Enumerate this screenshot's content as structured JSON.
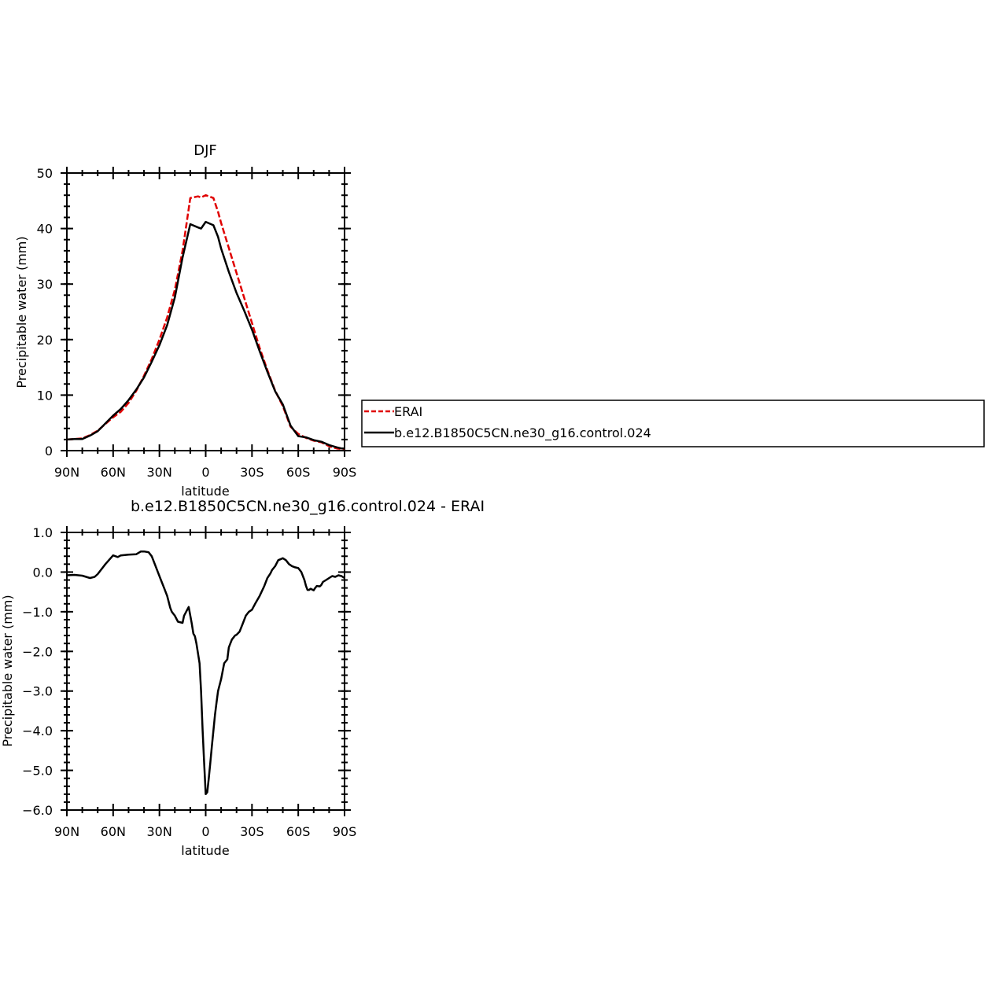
{
  "chart_data": [
    {
      "type": "line",
      "title": "DJF",
      "xlabel": "latitude",
      "ylabel": "Precipitable water (mm)",
      "xlim": [
        90,
        -90
      ],
      "ylim": [
        0,
        50
      ],
      "x_ticks": [
        90,
        60,
        30,
        0,
        -30,
        -60,
        -90
      ],
      "x_tick_labels": [
        "90N",
        "60N",
        "30N",
        "0",
        "30S",
        "60S",
        "90S"
      ],
      "y_ticks": [
        0,
        10,
        20,
        30,
        40,
        50
      ],
      "y_tick_labels": [
        "0",
        "10",
        "20",
        "30",
        "40",
        "50"
      ],
      "grid": false,
      "legend": "right",
      "series": [
        {
          "name": "ERAI",
          "color": "#e00000",
          "style": "dashed",
          "x": [
            90,
            85,
            80,
            75,
            70,
            65,
            60,
            55,
            50,
            45,
            40,
            35,
            30,
            25,
            20,
            15,
            10,
            5,
            3,
            0,
            -5,
            -8,
            -10,
            -15,
            -20,
            -25,
            -30,
            -35,
            -40,
            -45,
            -50,
            -55,
            -60,
            -65,
            -68,
            -70,
            -75,
            -80,
            -85,
            -88,
            -90
          ],
          "values": [
            2.0,
            2.1,
            2.2,
            2.8,
            3.6,
            4.8,
            6.0,
            7.0,
            8.6,
            10.8,
            13.5,
            16.5,
            20.0,
            24.0,
            29.0,
            36.0,
            45.5,
            45.8,
            45.6,
            46.0,
            45.5,
            43.0,
            41.0,
            36.5,
            32.0,
            27.5,
            23.0,
            18.5,
            14.5,
            10.8,
            8.0,
            4.3,
            3.0,
            2.3,
            2.0,
            1.8,
            1.5,
            0.8,
            0.4,
            0.3,
            0.3
          ]
        },
        {
          "name": "b.e12.B1850C5CN.ne30_g16.control.024",
          "color": "#000000",
          "style": "solid",
          "x": [
            90,
            85,
            80,
            75,
            70,
            65,
            60,
            55,
            50,
            45,
            40,
            35,
            30,
            25,
            20,
            15,
            10,
            5,
            3,
            0,
            -5,
            -8,
            -10,
            -15,
            -20,
            -25,
            -30,
            -35,
            -40,
            -45,
            -50,
            -55,
            -60,
            -65,
            -68,
            -70,
            -75,
            -80,
            -85,
            -88,
            -90
          ],
          "values": [
            2.0,
            2.1,
            2.1,
            2.7,
            3.5,
            4.9,
            6.3,
            7.5,
            9.1,
            11.0,
            13.2,
            16.0,
            19.0,
            22.6,
            27.6,
            34.8,
            40.8,
            40.2,
            40.0,
            41.2,
            40.6,
            38.5,
            36.4,
            32.2,
            28.4,
            25.2,
            21.8,
            17.9,
            14.2,
            10.7,
            8.3,
            4.5,
            2.6,
            2.4,
            2.1,
            1.9,
            1.6,
            1.0,
            0.6,
            0.4,
            0.4
          ]
        }
      ]
    },
    {
      "type": "line",
      "title": "b.e12.B1850C5CN.ne30_g16.control.024 - ERAI",
      "xlabel": "latitude",
      "ylabel": "Precipitable water (mm)",
      "xlim": [
        90,
        -90
      ],
      "ylim": [
        -6,
        1
      ],
      "x_ticks": [
        90,
        60,
        30,
        0,
        -30,
        -60,
        -90
      ],
      "x_tick_labels": [
        "90N",
        "60N",
        "30N",
        "0",
        "30S",
        "60S",
        "90S"
      ],
      "y_ticks": [
        1,
        0,
        -1,
        -2,
        -3,
        -4,
        -5,
        -6
      ],
      "y_tick_labels": [
        "1.0",
        "0.0",
        "−1.0",
        "−2.0",
        "−3.0",
        "−4.0",
        "−5.0",
        "−6.0"
      ],
      "grid": false,
      "series": [
        {
          "name": "",
          "color": "#000000",
          "style": "solid",
          "x": [
            90,
            85,
            80,
            75,
            72,
            70,
            65,
            60,
            57,
            55,
            50,
            45,
            42,
            40,
            37,
            35,
            33,
            31,
            29,
            27,
            26,
            25,
            23,
            22,
            21,
            20,
            18,
            15,
            14,
            12,
            11,
            9,
            8,
            7,
            6,
            4,
            3,
            2,
            1,
            0,
            -1,
            -2,
            -3,
            -4,
            -5,
            -6,
            -7,
            -8,
            -10,
            -12,
            -14,
            -15,
            -17,
            -19,
            -20,
            -22,
            -24,
            -26,
            -28,
            -30,
            -32,
            -35,
            -38,
            -40,
            -42,
            -43,
            -45,
            -47,
            -50,
            -52,
            -54,
            -56,
            -58,
            -60,
            -62,
            -64,
            -65,
            -66,
            -67,
            -68,
            -70,
            -71,
            -72,
            -74,
            -75,
            -76,
            -78,
            -80,
            -82,
            -84,
            -86,
            -88,
            -90
          ],
          "values": [
            -0.08,
            -0.07,
            -0.09,
            -0.15,
            -0.12,
            -0.05,
            0.2,
            0.42,
            0.38,
            0.42,
            0.44,
            0.45,
            0.52,
            0.52,
            0.5,
            0.4,
            0.2,
            0.0,
            -0.2,
            -0.4,
            -0.5,
            -0.6,
            -0.9,
            -1.0,
            -1.05,
            -1.1,
            -1.25,
            -1.28,
            -1.1,
            -0.95,
            -0.88,
            -1.3,
            -1.55,
            -1.62,
            -1.8,
            -2.3,
            -3.0,
            -4.0,
            -4.8,
            -5.6,
            -5.55,
            -5.2,
            -4.8,
            -4.4,
            -4.0,
            -3.6,
            -3.3,
            -3.0,
            -2.7,
            -2.3,
            -2.2,
            -1.9,
            -1.7,
            -1.6,
            -1.58,
            -1.5,
            -1.3,
            -1.1,
            -1.0,
            -0.95,
            -0.8,
            -0.6,
            -0.35,
            -0.15,
            -0.03,
            0.05,
            0.15,
            0.3,
            0.35,
            0.3,
            0.2,
            0.15,
            0.12,
            0.1,
            0.0,
            -0.2,
            -0.35,
            -0.45,
            -0.45,
            -0.42,
            -0.46,
            -0.4,
            -0.35,
            -0.36,
            -0.32,
            -0.25,
            -0.2,
            -0.15,
            -0.1,
            -0.12,
            -0.08,
            -0.1,
            -0.15
          ]
        }
      ]
    }
  ]
}
